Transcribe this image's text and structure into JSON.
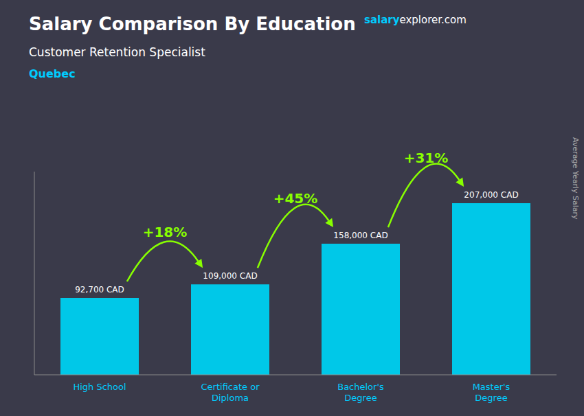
{
  "chart_data": {
    "type": "bar",
    "title": "Salary Comparison By Education",
    "subtitle": "Customer Retention Specialist",
    "location": {
      "text": "Quebec",
      "color": "#00ccff"
    },
    "source": [
      {
        "text": "salary",
        "color": "#00ccff"
      },
      {
        "text": "explorer.com",
        "color": "#ffffff"
      }
    ],
    "ylabel": "Average Yearly Salary",
    "categories": [
      "High School",
      "Certificate or\nDiploma",
      "Bachelor's\nDegree",
      "Master's\nDegree"
    ],
    "values": [
      92700,
      109000,
      158000,
      207000
    ],
    "value_labels": [
      "92,700 CAD",
      "109,000 CAD",
      "158,000 CAD",
      "207,000 CAD"
    ],
    "data_labels": true,
    "annotations": [
      {
        "text": "+18%",
        "color": "#88ff00"
      },
      {
        "text": "+45%",
        "color": "#88ff00"
      },
      {
        "text": "+31%",
        "color": "#88ff00"
      }
    ],
    "color": "#00c8e8",
    "ylim": [
      0,
      245000
    ],
    "tick_labels": "x",
    "grid": false
  }
}
